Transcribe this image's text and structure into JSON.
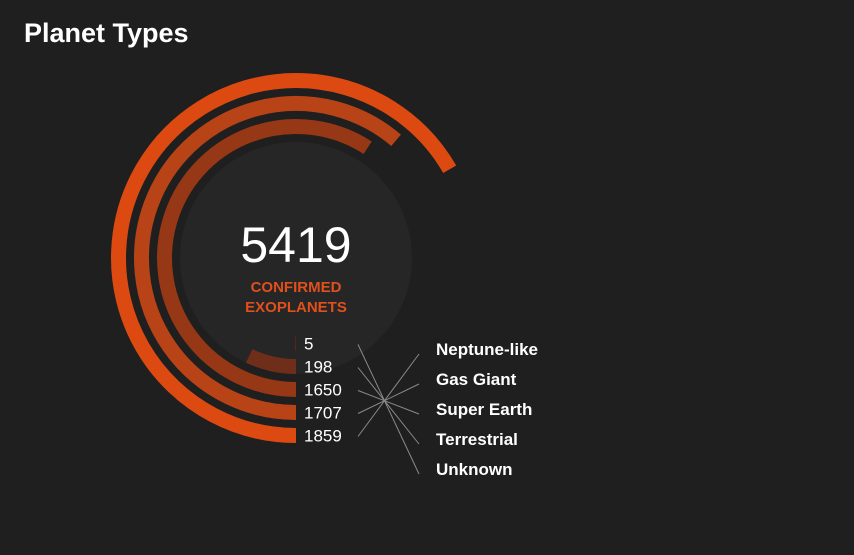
{
  "title": "Planet Types",
  "center": {
    "total": "5419",
    "caption_line1": "CONFIRMED",
    "caption_line2": "EXOPLANETS"
  },
  "colors": {
    "background": "#1f1f1f",
    "center_circle": "#262626",
    "accent": "#e0501c",
    "leader": "#8a8a8a"
  },
  "chart_data": {
    "type": "radial-bar",
    "title": "Planet Types",
    "total": 5419,
    "max_value": 1859,
    "categories": [
      "Neptune-like",
      "Gas Giant",
      "Super Earth",
      "Terrestrial",
      "Unknown"
    ],
    "values": [
      1859,
      1707,
      1650,
      198,
      5
    ],
    "colors": [
      "#dc4a12",
      "#b84316",
      "#963716",
      "#6e2e19",
      "#5a2616"
    ]
  }
}
